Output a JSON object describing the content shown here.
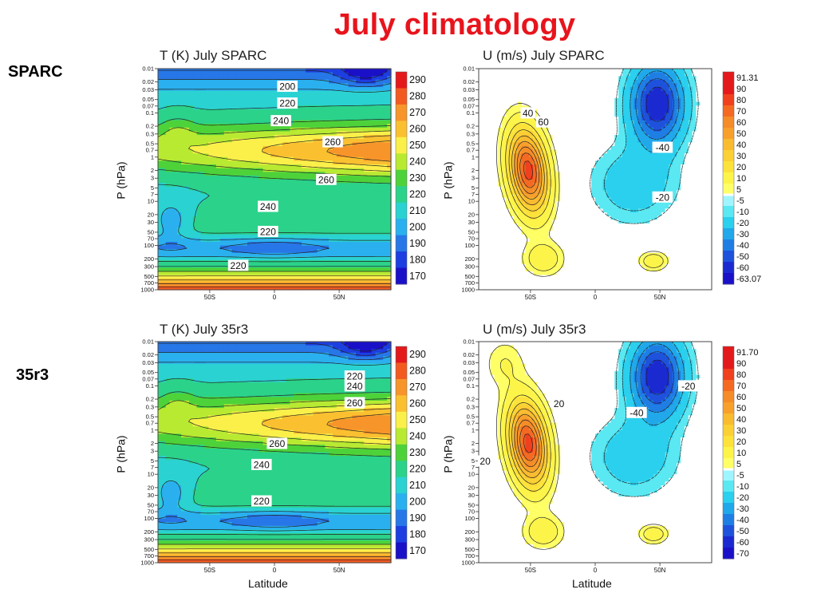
{
  "slide": {
    "title": "July climatology",
    "row_labels": [
      "SPARC",
      "35r3"
    ]
  },
  "chart_data": [
    {
      "type": "heatmap",
      "title": "T (K) July SPARC",
      "xlabel": "",
      "ylabel": "P (hPa)",
      "x_ticks": [
        "50S",
        "0",
        "50N"
      ],
      "x_tick_values": [
        -50,
        0,
        50
      ],
      "xlim": [
        -90,
        90
      ],
      "y_ticks": [
        "0.01",
        "0.02",
        "0.03",
        "0.05",
        "0.07",
        "0.1",
        "0.2",
        "0.3",
        "0.5",
        "0.7",
        "1",
        "2",
        "3",
        "5",
        "7",
        "10",
        "20",
        "30",
        "50",
        "70",
        "100",
        "200",
        "300",
        "500",
        "700",
        "1000"
      ],
      "y_tick_values": [
        0.01,
        0.02,
        0.03,
        0.05,
        0.07,
        0.1,
        0.2,
        0.3,
        0.5,
        0.7,
        1,
        2,
        3,
        5,
        7,
        10,
        20,
        30,
        50,
        70,
        100,
        200,
        300,
        500,
        700,
        1000
      ],
      "ylim": [
        0.01,
        1000
      ],
      "y_scale": "log-reversed",
      "colorbar": [
        "290",
        "280",
        "270",
        "260",
        "250",
        "240",
        "230",
        "220",
        "210",
        "200",
        "190",
        "180",
        "170"
      ],
      "colorbar_colors": [
        "#e4191c",
        "#f35a20",
        "#f7952a",
        "#fbc030",
        "#fbf04a",
        "#b8ea32",
        "#4ed23a",
        "#2bd28a",
        "#2ad2d2",
        "#2ab0ee",
        "#2777e8",
        "#1d3ee0",
        "#1a10c8"
      ],
      "contour_labels": [
        {
          "text": "200",
          "x": 10,
          "p": 0.025
        },
        {
          "text": "220",
          "x": 10,
          "p": 0.06
        },
        {
          "text": "240",
          "x": 5,
          "p": 0.15
        },
        {
          "text": "260",
          "x": 45,
          "p": 0.45
        },
        {
          "text": "260",
          "x": 40,
          "p": 3.2
        },
        {
          "text": "240",
          "x": -5,
          "p": 13
        },
        {
          "text": "220",
          "x": -5,
          "p": 48
        },
        {
          "text": "220",
          "x": -28,
          "p": 280
        }
      ]
    },
    {
      "type": "heatmap",
      "title": "U (m/s) July SPARC",
      "xlabel": "",
      "ylabel": "P (hPa)",
      "x_ticks": [
        "50S",
        "0",
        "50N"
      ],
      "x_tick_values": [
        -50,
        0,
        50
      ],
      "xlim": [
        -90,
        90
      ],
      "y_ticks": [
        "0.01",
        "0.02",
        "0.03",
        "0.05",
        "0.07",
        "0.1",
        "0.2",
        "0.3",
        "0.5",
        "0.7",
        "1",
        "2",
        "3",
        "5",
        "7",
        "10",
        "20",
        "30",
        "50",
        "70",
        "100",
        "200",
        "300",
        "500",
        "700",
        "1000"
      ],
      "y_tick_values": [
        0.01,
        0.02,
        0.03,
        0.05,
        0.07,
        0.1,
        0.2,
        0.3,
        0.5,
        0.7,
        1,
        2,
        3,
        5,
        7,
        10,
        20,
        30,
        50,
        70,
        100,
        200,
        300,
        500,
        700,
        1000
      ],
      "ylim": [
        0.01,
        1000
      ],
      "y_scale": "log-reversed",
      "colorbar": [
        "91.31",
        "90",
        "80",
        "70",
        "60",
        "50",
        "40",
        "30",
        "20",
        "10",
        "5",
        "-5",
        "-10",
        "-20",
        "-30",
        "-40",
        "-50",
        "-60",
        "-63.07"
      ],
      "colorbar_colors": [
        "#e4191c",
        "#e4191c",
        "#f0401e",
        "#f46a22",
        "#f58c28",
        "#f7a02c",
        "#f9bb30",
        "#fbd034",
        "#fce23a",
        "#fdf44a",
        "#ffff66",
        "#9ff5ff",
        "#5ae8f2",
        "#2ad0ee",
        "#20a8ea",
        "#1f7ee4",
        "#1e52dc",
        "#1b2ad0",
        "#1a10c8"
      ],
      "contour_labels": [
        {
          "text": "40",
          "x": -52,
          "p": 0.1
        },
        {
          "text": "60",
          "x": -40,
          "p": 0.16
        },
        {
          "text": "-40",
          "x": 52,
          "p": 0.6
        },
        {
          "text": "-20",
          "x": 52,
          "p": 8
        }
      ]
    },
    {
      "type": "heatmap",
      "title": "T (K) July 35r3",
      "xlabel": "Latitude",
      "ylabel": "P (hPa)",
      "x_ticks": [
        "50S",
        "0",
        "50N"
      ],
      "x_tick_values": [
        -50,
        0,
        50
      ],
      "xlim": [
        -90,
        90
      ],
      "y_ticks": [
        "0.01",
        "0.02",
        "0.03",
        "0.05",
        "0.07",
        "0.1",
        "0.2",
        "0.3",
        "0.5",
        "0.7",
        "1",
        "2",
        "3",
        "5",
        "7",
        "10",
        "20",
        "30",
        "50",
        "70",
        "100",
        "200",
        "300",
        "500",
        "700",
        "1000"
      ],
      "y_tick_values": [
        0.01,
        0.02,
        0.03,
        0.05,
        0.07,
        0.1,
        0.2,
        0.3,
        0.5,
        0.7,
        1,
        2,
        3,
        5,
        7,
        10,
        20,
        30,
        50,
        70,
        100,
        200,
        300,
        500,
        700,
        1000
      ],
      "ylim": [
        0.01,
        1000
      ],
      "y_scale": "log-reversed",
      "colorbar": [
        "290",
        "280",
        "270",
        "260",
        "250",
        "240",
        "230",
        "220",
        "210",
        "200",
        "190",
        "180",
        "170"
      ],
      "colorbar_colors": [
        "#e4191c",
        "#f35a20",
        "#f7952a",
        "#fbc030",
        "#fbf04a",
        "#b8ea32",
        "#4ed23a",
        "#2bd28a",
        "#2ad2d2",
        "#2ab0ee",
        "#2777e8",
        "#1d3ee0",
        "#1a10c8"
      ],
      "contour_labels": [
        {
          "text": "220",
          "x": 62,
          "p": 0.06
        },
        {
          "text": "240",
          "x": 62,
          "p": 0.1
        },
        {
          "text": "260",
          "x": 62,
          "p": 0.24
        },
        {
          "text": "260",
          "x": 2,
          "p": 2
        },
        {
          "text": "240",
          "x": -10,
          "p": 6
        },
        {
          "text": "220",
          "x": -10,
          "p": 40
        }
      ]
    },
    {
      "type": "heatmap",
      "title": "U (m/s) July 35r3",
      "xlabel": "Latitude",
      "ylabel": "P (hPa)",
      "x_ticks": [
        "50S",
        "0",
        "50N"
      ],
      "x_tick_values": [
        -50,
        0,
        50
      ],
      "xlim": [
        -90,
        90
      ],
      "y_ticks": [
        "0.01",
        "0.02",
        "0.03",
        "0.05",
        "0.07",
        "0.1",
        "0.2",
        "0.3",
        "0.5",
        "0.7",
        "1",
        "2",
        "3",
        "5",
        "7",
        "10",
        "20",
        "30",
        "50",
        "70",
        "100",
        "200",
        "300",
        "500",
        "700",
        "1000"
      ],
      "y_tick_values": [
        0.01,
        0.02,
        0.03,
        0.05,
        0.07,
        0.1,
        0.2,
        0.3,
        0.5,
        0.7,
        1,
        2,
        3,
        5,
        7,
        10,
        20,
        30,
        50,
        70,
        100,
        200,
        300,
        500,
        700,
        1000
      ],
      "ylim": [
        0.01,
        1000
      ],
      "y_scale": "log-reversed",
      "colorbar": [
        "91.70",
        "90",
        "80",
        "70",
        "60",
        "50",
        "40",
        "30",
        "20",
        "10",
        "5",
        "-5",
        "-10",
        "-20",
        "-30",
        "-40",
        "-50",
        "-60",
        "-70"
      ],
      "colorbar_colors": [
        "#e4191c",
        "#e4191c",
        "#f0401e",
        "#f46a22",
        "#f58c28",
        "#f7a02c",
        "#f9bb30",
        "#fbd034",
        "#fce23a",
        "#fdf44a",
        "#ffff66",
        "#9ff5ff",
        "#5ae8f2",
        "#2ad0ee",
        "#20a8ea",
        "#1f7ee4",
        "#1e52dc",
        "#1b2ad0",
        "#1a10c8"
      ],
      "contour_labels": [
        {
          "text": "20",
          "x": -28,
          "p": 0.25
        },
        {
          "text": "-40",
          "x": 32,
          "p": 0.4
        },
        {
          "text": "-20",
          "x": 72,
          "p": 0.1
        },
        {
          "text": "20",
          "x": -85,
          "p": 5
        }
      ]
    }
  ]
}
